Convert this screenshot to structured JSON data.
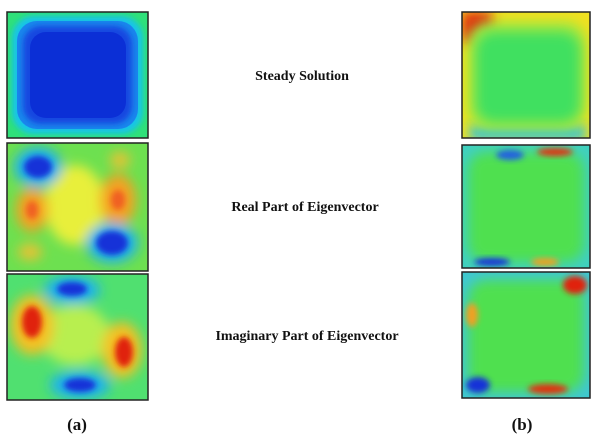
{
  "figure": {
    "rows": [
      {
        "label": "Steady Solution"
      },
      {
        "label": "Real Part of Eigenvector"
      },
      {
        "label": "Imaginary Part of Eigenvector"
      }
    ],
    "captions": [
      "(a)",
      "(b)"
    ]
  }
}
